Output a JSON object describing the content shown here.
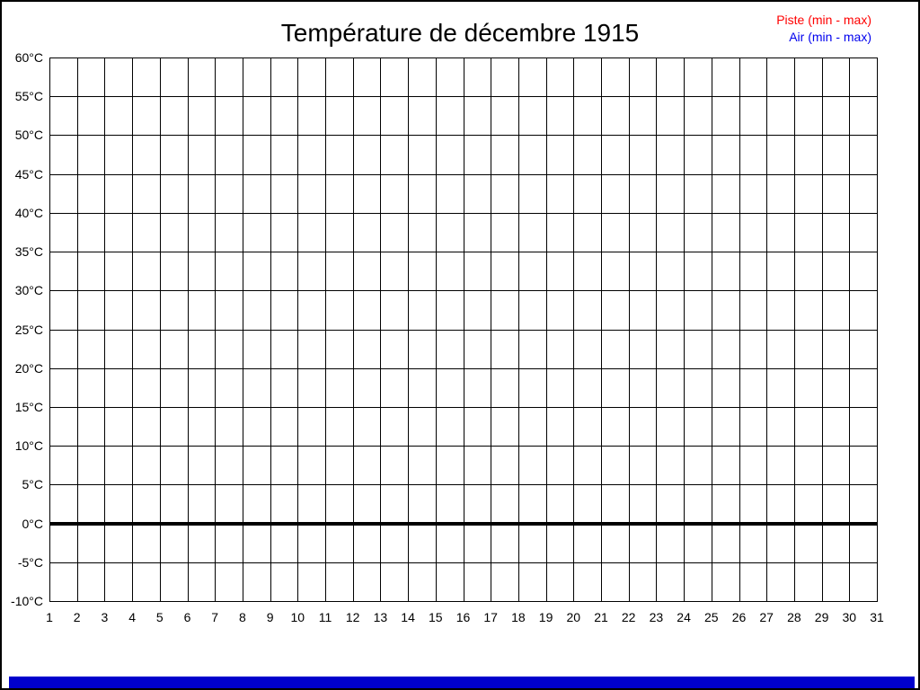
{
  "chart_data": {
    "type": "line",
    "title": "Température de décembre 1915",
    "xlabel": "",
    "ylabel": "",
    "categories": [
      1,
      2,
      3,
      4,
      5,
      6,
      7,
      8,
      9,
      10,
      11,
      12,
      13,
      14,
      15,
      16,
      17,
      18,
      19,
      20,
      21,
      22,
      23,
      24,
      25,
      26,
      27,
      28,
      29,
      30,
      31
    ],
    "x_tick_labels": [
      "1",
      "2",
      "3",
      "4",
      "5",
      "6",
      "7",
      "8",
      "9",
      "10",
      "11",
      "12",
      "13",
      "14",
      "15",
      "16",
      "17",
      "18",
      "19",
      "20",
      "21",
      "22",
      "23",
      "24",
      "25",
      "26",
      "27",
      "28",
      "29",
      "30",
      "31"
    ],
    "y_tick_labels": [
      "60°C",
      "55°C",
      "50°C",
      "45°C",
      "40°C",
      "35°C",
      "30°C",
      "25°C",
      "20°C",
      "15°C",
      "10°C",
      "5°C",
      "0°C",
      "-5°C",
      "-10°C"
    ],
    "ylim": [
      -10,
      60
    ],
    "y_tick_step": 5,
    "grid": true,
    "legend_position": "top-right",
    "series": [
      {
        "name": "Piste (min - max)",
        "color": "#ff0000",
        "values": []
      },
      {
        "name": "Air (min - max)",
        "color": "#0000ee",
        "values": []
      }
    ],
    "zero_line": {
      "value": 0,
      "color": "#000000"
    }
  },
  "colors": {
    "background": "#ffffff",
    "frame_border": "#000000",
    "grid": "#000000",
    "title_text": "#000000",
    "tick_text": "#000000",
    "footer_bar": "#0000cc"
  }
}
